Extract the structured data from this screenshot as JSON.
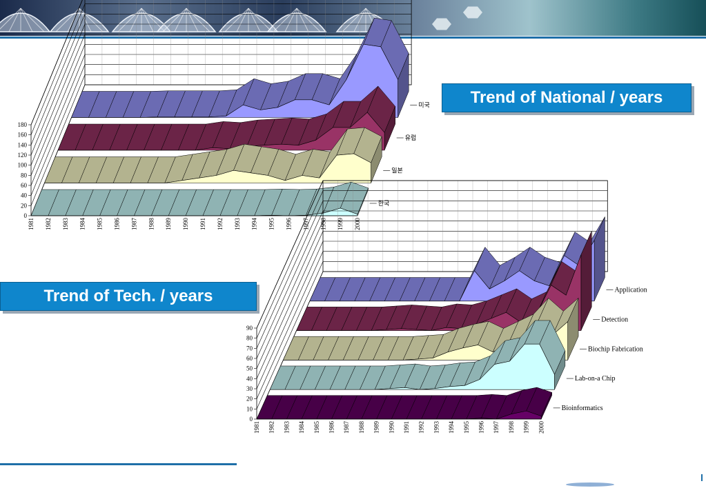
{
  "header": {
    "banner_icons": [
      "satellite-dish-icon",
      "satellite-dish-icon",
      "satellite-dish-icon",
      "satellite-dish-icon",
      "satellite-dish-icon",
      "satellite-dish-icon",
      "satellite-dish-icon",
      "hexagon-icon",
      "hexagon-icon"
    ],
    "accent_color": "#0f86cc",
    "rule_color": "#1e6fa8"
  },
  "titles": {
    "national": "Trend of National / years",
    "tech": "Trend of Tech. / years"
  },
  "chart_data": [
    {
      "type": "area",
      "style": "3d-stacked-area",
      "title": "",
      "xlabel": "",
      "ylabel": "",
      "ylim": [
        0,
        180
      ],
      "yticks": [
        "0",
        "20",
        "40",
        "60",
        "80",
        "100",
        "120",
        "140",
        "160",
        "180"
      ],
      "grid": true,
      "legend": "series labels on depth axis, right side",
      "x": [
        "1981",
        "1982",
        "1983",
        "1984",
        "1985",
        "1986",
        "1987",
        "1988",
        "1989",
        "1990",
        "1991",
        "1992",
        "1993",
        "1994",
        "1995",
        "1996",
        "1997",
        "1998",
        "1999",
        "2000"
      ],
      "series": [
        {
          "name": "한국",
          "color": "#ccffff",
          "values": [
            0,
            0,
            0,
            0,
            0,
            0,
            0,
            0,
            0,
            0,
            0,
            0,
            0,
            0,
            1,
            0,
            1,
            5,
            15,
            3
          ]
        },
        {
          "name": "일본",
          "color": "#ffffcc",
          "values": [
            0,
            0,
            0,
            0,
            0,
            0,
            0,
            0,
            5,
            10,
            15,
            25,
            20,
            15,
            5,
            15,
            10,
            55,
            58,
            40
          ]
        },
        {
          "name": "유럽",
          "color": "#993366",
          "values": [
            0,
            0,
            0,
            0,
            0,
            0,
            0,
            0,
            0,
            5,
            3,
            8,
            10,
            12,
            10,
            20,
            45,
            45,
            75,
            35
          ]
        },
        {
          "name": "미국",
          "color": "#9999ff",
          "values": [
            0,
            0,
            0,
            0,
            0,
            1,
            1,
            1,
            1,
            3,
            25,
            15,
            20,
            35,
            35,
            25,
            75,
            145,
            140,
            75
          ]
        }
      ]
    },
    {
      "type": "area",
      "style": "3d-stacked-area",
      "title": "",
      "xlabel": "",
      "ylabel": "",
      "ylim": [
        0,
        90
      ],
      "yticks": [
        "0",
        "10",
        "20",
        "30",
        "40",
        "50",
        "60",
        "70",
        "80",
        "90"
      ],
      "grid": true,
      "legend": "series labels on depth axis, right side",
      "x": [
        "1981",
        "1982",
        "1983",
        "1984",
        "1985",
        "1986",
        "1987",
        "1988",
        "1989",
        "1990",
        "1991",
        "1992",
        "1993",
        "1994",
        "1995",
        "1996",
        "1997",
        "1998",
        "1999",
        "2000"
      ],
      "series": [
        {
          "name": "Bioinformatics",
          "color": "#660066",
          "values": [
            0,
            0,
            0,
            0,
            0,
            0,
            0,
            0,
            0,
            0,
            0,
            0,
            0,
            0,
            0,
            1,
            0,
            5,
            8,
            3
          ]
        },
        {
          "name": "Lab-on-a Chip",
          "color": "#ccffff",
          "values": [
            0,
            0,
            0,
            0,
            0,
            0,
            0,
            0,
            1,
            2,
            0,
            1,
            3,
            4,
            10,
            25,
            28,
            45,
            45,
            15
          ]
        },
        {
          "name": "Biochip Fabrication",
          "color": "#ffffcc",
          "values": [
            0,
            0,
            0,
            0,
            0,
            0,
            0,
            0,
            0,
            1,
            2,
            8,
            12,
            15,
            8,
            15,
            22,
            38,
            25,
            38
          ]
        },
        {
          "name": "Detection",
          "color": "#993366",
          "values": [
            0,
            0,
            0,
            0,
            0,
            0,
            1,
            2,
            1,
            0,
            3,
            2,
            6,
            12,
            18,
            8,
            15,
            45,
            35,
            75
          ]
        },
        {
          "name": "Application",
          "color": "#9999ff",
          "values": [
            0,
            0,
            0,
            0,
            0,
            0,
            0,
            0,
            0,
            0,
            0,
            30,
            12,
            20,
            30,
            20,
            15,
            45,
            35,
            60
          ]
        }
      ]
    }
  ]
}
